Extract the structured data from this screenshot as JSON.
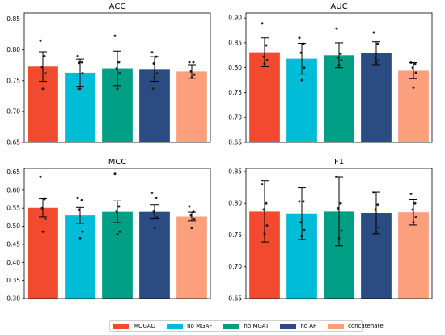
{
  "legend": [
    "MOGAD",
    "no MGAF",
    "no MGAT",
    "no AF",
    "concatenate"
  ],
  "colors": [
    "#f24a2e",
    "#00bcd6",
    "#009e84",
    "#2b4c82",
    "#fc9f7d"
  ],
  "chart_data": [
    {
      "type": "bar",
      "title": "ACC",
      "categories": [
        "MOGAD",
        "no MGAF",
        "no MGAT",
        "no AF",
        "concatenate"
      ],
      "values": [
        0.773,
        0.763,
        0.77,
        0.769,
        0.765
      ],
      "errors": [
        0.024,
        0.022,
        0.028,
        0.02,
        0.011
      ],
      "points": [
        [
          0.815,
          0.79,
          0.772,
          0.762,
          0.737
        ],
        [
          0.79,
          0.78,
          0.779,
          0.762,
          0.737,
          0.737
        ],
        [
          0.823,
          0.78,
          0.77,
          0.762,
          0.737
        ],
        [
          0.796,
          0.789,
          0.778,
          0.762,
          0.755,
          0.737
        ],
        [
          0.78,
          0.78,
          0.765,
          0.76,
          0.755
        ]
      ],
      "ylim": [
        0.65,
        0.86
      ],
      "yticks": [
        0.65,
        0.7,
        0.75,
        0.8,
        0.85
      ],
      "yticklabels": [
        "0.65",
        "0.70",
        "0.75",
        "0.80",
        "0.85"
      ]
    },
    {
      "type": "bar",
      "title": "AUC",
      "categories": [
        "MOGAD",
        "no MGAF",
        "no MGAT",
        "no AF",
        "concatenate"
      ],
      "values": [
        0.831,
        0.818,
        0.825,
        0.829,
        0.794
      ],
      "errors": [
        0.029,
        0.031,
        0.025,
        0.023,
        0.016
      ],
      "points": [
        [
          0.889,
          0.845,
          0.822,
          0.815,
          0.808
        ],
        [
          0.86,
          0.848,
          0.83,
          0.8,
          0.775
        ],
        [
          0.879,
          0.828,
          0.82,
          0.815,
          0.805
        ],
        [
          0.871,
          0.848,
          0.82,
          0.815,
          0.81
        ],
        [
          0.81,
          0.808,
          0.8,
          0.79,
          0.76
        ]
      ],
      "ylim": [
        0.65,
        0.91
      ],
      "yticks": [
        0.65,
        0.7,
        0.75,
        0.8,
        0.85,
        0.9
      ],
      "yticklabels": [
        "0.65",
        "0.70",
        "0.75",
        "0.80",
        "0.85",
        "0.90"
      ]
    },
    {
      "type": "bar",
      "title": "MCC",
      "categories": [
        "MOGAD",
        "no MGAF",
        "no MGAT",
        "no AF",
        "concatenate"
      ],
      "values": [
        0.551,
        0.53,
        0.54,
        0.54,
        0.527
      ],
      "errors": [
        0.025,
        0.022,
        0.03,
        0.02,
        0.012
      ],
      "points": [
        [
          0.637,
          0.575,
          0.55,
          0.52,
          0.485
        ],
        [
          0.578,
          0.572,
          0.545,
          0.485,
          0.467
        ],
        [
          0.645,
          0.555,
          0.54,
          0.485,
          0.478
        ],
        [
          0.592,
          0.578,
          0.54,
          0.525,
          0.495
        ],
        [
          0.555,
          0.54,
          0.53,
          0.52,
          0.495
        ]
      ],
      "ylim": [
        0.3,
        0.66
      ],
      "yticks": [
        0.3,
        0.35,
        0.4,
        0.45,
        0.5,
        0.55,
        0.6,
        0.65
      ],
      "yticklabels": [
        "0.30",
        "0.35",
        "0.40",
        "0.45",
        "0.50",
        "0.55",
        "0.60",
        "0.65"
      ]
    },
    {
      "type": "bar",
      "title": "F1",
      "categories": [
        "MOGAD",
        "no MGAF",
        "no MGAT",
        "no AF",
        "concatenate"
      ],
      "values": [
        0.787,
        0.784,
        0.787,
        0.785,
        0.786
      ],
      "errors": [
        0.048,
        0.041,
        0.054,
        0.033,
        0.02
      ],
      "points": [
        [
          0.83,
          0.8,
          0.79,
          0.765,
          0.752
        ],
        [
          0.803,
          0.803,
          0.77,
          0.758,
          0.748
        ],
        [
          0.842,
          0.8,
          0.792,
          0.757,
          0.745
        ],
        [
          0.817,
          0.798,
          0.79,
          0.762,
          0.755
        ],
        [
          0.815,
          0.8,
          0.79,
          0.778,
          0.77
        ]
      ],
      "ylim": [
        0.65,
        0.855
      ],
      "yticks": [
        0.65,
        0.7,
        0.75,
        0.8,
        0.85
      ],
      "yticklabels": [
        "0.65",
        "0.70",
        "0.75",
        "0.80",
        "0.85"
      ]
    }
  ]
}
